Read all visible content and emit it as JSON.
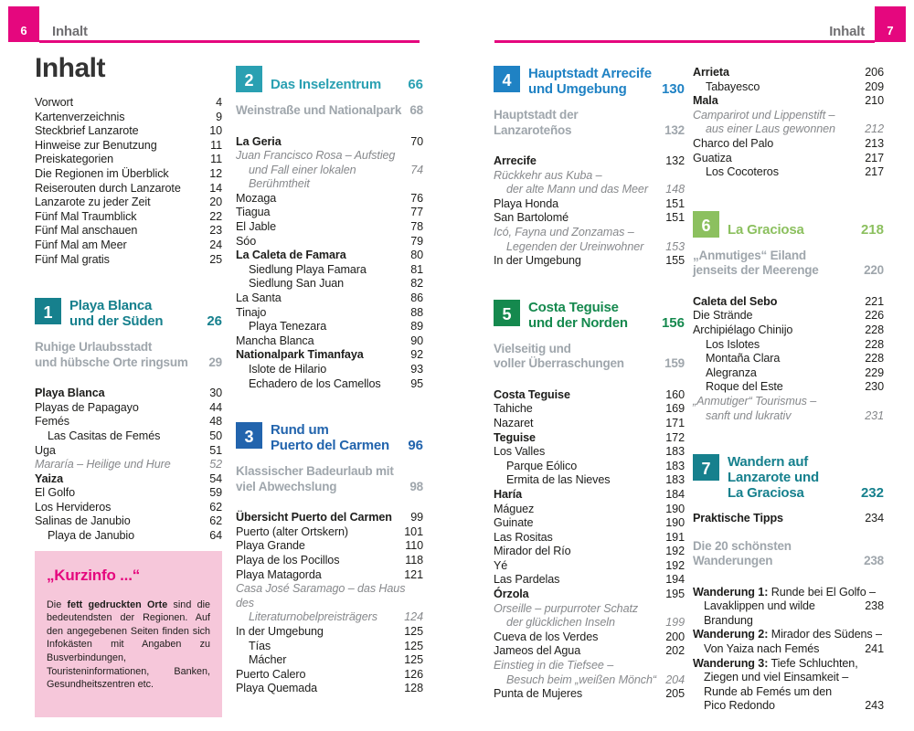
{
  "header": {
    "left": {
      "page": "6",
      "label": "Inhalt"
    },
    "right": {
      "page": "7",
      "label": "Inhalt"
    }
  },
  "colors": {
    "brand_pink": "#e5077e",
    "infobox_pink": "#f6c7da",
    "section_teal": "#16808d",
    "section_cyan": "#2aa0b2",
    "section_blue": "#2264ad",
    "section_bright_blue": "#1f82c4",
    "section_green": "#15894e",
    "section_light_green": "#8cc05f"
  },
  "columns": [
    {
      "items": [
        {
          "k": "title",
          "text": "Inhalt"
        },
        {
          "k": "r",
          "label": "Vorwort",
          "page": "4"
        },
        {
          "k": "r",
          "label": "Kartenverzeichnis",
          "page": "9"
        },
        {
          "k": "r",
          "label": "Steckbrief Lanzarote",
          "page": "10"
        },
        {
          "k": "r",
          "label": "Hinweise zur Benutzung",
          "page": "11"
        },
        {
          "k": "r",
          "label": "Preiskategorien",
          "page": "11"
        },
        {
          "k": "r",
          "label": "Die Regionen im Überblick",
          "page": "12"
        },
        {
          "k": "r",
          "label": "Reiserouten durch Lanzarote",
          "page": "14"
        },
        {
          "k": "r",
          "label": "Lanzarote zu jeder Zeit",
          "page": "20"
        },
        {
          "k": "r",
          "label": "Fünf Mal Traumblick",
          "page": "22"
        },
        {
          "k": "r",
          "label": "Fünf Mal anschauen",
          "page": "23"
        },
        {
          "k": "r",
          "label": "Fünf Mal am Meer",
          "page": "24"
        },
        {
          "k": "r",
          "label": "Fünf Mal gratis",
          "page": "25"
        },
        {
          "k": "sec",
          "n": "1",
          "color": "#16808d",
          "lines": [
            "Playa Blanca",
            "und der Süden"
          ],
          "page": "26"
        },
        {
          "k": "sub",
          "lines": [
            "Ruhige Urlaubsstadt",
            "und hübsche Orte ringsum"
          ],
          "page": "29"
        },
        {
          "k": "r",
          "label": "Playa Blanca",
          "page": "30",
          "b": 1
        },
        {
          "k": "r",
          "label": "Playas de Papagayo",
          "page": "44"
        },
        {
          "k": "r",
          "label": "Femés",
          "page": "48"
        },
        {
          "k": "r",
          "label": "Las Casitas de Femés",
          "page": "50",
          "ind": 1
        },
        {
          "k": "r",
          "label": "Uga",
          "page": "51"
        },
        {
          "k": "it",
          "lines": [
            "Mararía – Heilige und Hure"
          ],
          "page": "52"
        },
        {
          "k": "r",
          "label": "Yaiza",
          "page": "54",
          "b": 1
        },
        {
          "k": "r",
          "label": "El Golfo",
          "page": "59"
        },
        {
          "k": "r",
          "label": "Los Hervideros",
          "page": "62"
        },
        {
          "k": "r",
          "label": "Salinas de Janubio",
          "page": "62"
        },
        {
          "k": "r",
          "label": "Playa de Janubio",
          "page": "64",
          "ind": 1
        },
        {
          "k": "box",
          "title": "„Kurzinfo ...“",
          "parts": [
            {
              "t": "Die ",
              "b": 0
            },
            {
              "t": "fett gedruckten Orte",
              "b": 1
            },
            {
              "t": " sind die bedeutendsten der Regionen. Auf den angegebenen Seiten finden sich Infokästen mit Angaben zu Busverbindungen, Touristeninformationen, Banken, Gesundheitszentren etc.",
              "b": 0
            }
          ]
        }
      ]
    },
    {
      "items": [
        {
          "k": "sec",
          "n": "2",
          "color": "#2aa0b2",
          "lines": [
            "Das Inselzentrum"
          ],
          "page": "66"
        },
        {
          "k": "sub",
          "lines": [
            "Weinstraße und Nationalpark"
          ],
          "page": "68"
        },
        {
          "k": "r",
          "label": "La Geria",
          "page": "70",
          "b": 1
        },
        {
          "k": "it",
          "lines": [
            "Juan Francisco Rosa – Aufstieg",
            "und Fall einer lokalen Berühmtheit"
          ],
          "page": "74"
        },
        {
          "k": "r",
          "label": "Mozaga",
          "page": "76"
        },
        {
          "k": "r",
          "label": "Tiagua",
          "page": "77"
        },
        {
          "k": "r",
          "label": "El Jable",
          "page": "78"
        },
        {
          "k": "r",
          "label": "Sóo",
          "page": "79"
        },
        {
          "k": "r",
          "label": "La Caleta de Famara",
          "page": "80",
          "b": 1
        },
        {
          "k": "r",
          "label": "Siedlung Playa Famara",
          "page": "81",
          "ind": 1
        },
        {
          "k": "r",
          "label": "Siedlung San Juan",
          "page": "82",
          "ind": 1
        },
        {
          "k": "r",
          "label": "La Santa",
          "page": "86"
        },
        {
          "k": "r",
          "label": "Tinajo",
          "page": "88"
        },
        {
          "k": "r",
          "label": "Playa Tenezara",
          "page": "89",
          "ind": 1
        },
        {
          "k": "r",
          "label": "Mancha Blanca",
          "page": "90"
        },
        {
          "k": "r",
          "label": "Nationalpark Timanfaya",
          "page": "92",
          "b": 1
        },
        {
          "k": "r",
          "label": "Islote de Hilario",
          "page": "93",
          "ind": 1
        },
        {
          "k": "r",
          "label": "Echadero de los Camellos",
          "page": "95",
          "ind": 1
        },
        {
          "k": "sec",
          "n": "3",
          "color": "#2264ad",
          "lines": [
            "Rund um",
            "Puerto del Carmen"
          ],
          "page": "96"
        },
        {
          "k": "sub",
          "lines": [
            "Klassischer Badeurlaub mit",
            "viel Abwechslung"
          ],
          "page": "98"
        },
        {
          "k": "r",
          "label": "Übersicht Puerto del Carmen",
          "page": "99",
          "b": 1
        },
        {
          "k": "r",
          "label": "Puerto (alter Ortskern)",
          "page": "101"
        },
        {
          "k": "r",
          "label": "Playa Grande",
          "page": "110"
        },
        {
          "k": "r",
          "label": "Playa de los Pocillos",
          "page": "118"
        },
        {
          "k": "r",
          "label": "Playa Matagorda",
          "page": "121"
        },
        {
          "k": "it",
          "lines": [
            "Casa José Saramago – das Haus des",
            "Literaturnobelpreisträgers"
          ],
          "page": "124"
        },
        {
          "k": "r",
          "label": "In der Umgebung",
          "page": "125"
        },
        {
          "k": "r",
          "label": "Tías",
          "page": "125",
          "ind": 1
        },
        {
          "k": "r",
          "label": "Mácher",
          "page": "125",
          "ind": 1
        },
        {
          "k": "r",
          "label": "Puerto Calero",
          "page": "126"
        },
        {
          "k": "r",
          "label": "Playa Quemada",
          "page": "128"
        }
      ]
    },
    {
      "items": [
        {
          "k": "sec",
          "n": "4",
          "color": "#1f82c4",
          "lines": [
            "Hauptstadt Arrecife",
            "und Umgebung"
          ],
          "page": "130"
        },
        {
          "k": "sub",
          "lines": [
            "Hauptstadt der Lanzaroteños"
          ],
          "page": "132"
        },
        {
          "k": "r",
          "label": "Arrecife",
          "page": "132",
          "b": 1
        },
        {
          "k": "it",
          "lines": [
            "Rückkehr aus Kuba –",
            "der alte Mann und das Meer"
          ],
          "page": "148"
        },
        {
          "k": "r",
          "label": "Playa Honda",
          "page": "151"
        },
        {
          "k": "r",
          "label": "San Bartolomé",
          "page": "151"
        },
        {
          "k": "it",
          "lines": [
            "Icó, Fayna und Zonzamas –",
            "Legenden der Ureinwohner"
          ],
          "page": "153"
        },
        {
          "k": "r",
          "label": "In der Umgebung",
          "page": "155"
        },
        {
          "k": "sec",
          "n": "5",
          "color": "#15894e",
          "lines": [
            "Costa Teguise",
            "und der Norden"
          ],
          "page": "156"
        },
        {
          "k": "sub",
          "lines": [
            "Vielseitig und",
            "voller Überraschungen"
          ],
          "page": "159"
        },
        {
          "k": "r",
          "label": "Costa Teguise",
          "page": "160",
          "b": 1
        },
        {
          "k": "r",
          "label": "Tahiche",
          "page": "169"
        },
        {
          "k": "r",
          "label": "Nazaret",
          "page": "171"
        },
        {
          "k": "r",
          "label": "Teguise",
          "page": "172",
          "b": 1
        },
        {
          "k": "r",
          "label": "Los Valles",
          "page": "183"
        },
        {
          "k": "r",
          "label": "Parque Eólico",
          "page": "183",
          "ind": 1
        },
        {
          "k": "r",
          "label": "Ermita de las Nieves",
          "page": "183",
          "ind": 1
        },
        {
          "k": "r",
          "label": "Haría",
          "page": "184",
          "b": 1
        },
        {
          "k": "r",
          "label": "Máguez",
          "page": "190"
        },
        {
          "k": "r",
          "label": "Guinate",
          "page": "190"
        },
        {
          "k": "r",
          "label": "Las Rositas",
          "page": "191"
        },
        {
          "k": "r",
          "label": "Mirador del Río",
          "page": "192"
        },
        {
          "k": "r",
          "label": "Yé",
          "page": "192"
        },
        {
          "k": "r",
          "label": "Las Pardelas",
          "page": "194"
        },
        {
          "k": "r",
          "label": "Órzola",
          "page": "195",
          "b": 1
        },
        {
          "k": "it",
          "lines": [
            "Orseille – purpurroter Schatz",
            "der glücklichen Inseln"
          ],
          "page": "199"
        },
        {
          "k": "r",
          "label": "Cueva de los Verdes",
          "page": "200"
        },
        {
          "k": "r",
          "label": "Jameos del Agua",
          "page": "202"
        },
        {
          "k": "it",
          "lines": [
            "Einstieg in die Tiefsee –",
            "Besuch beim „weißen Mönch“"
          ],
          "page": "204"
        },
        {
          "k": "r",
          "label": "Punta de Mujeres",
          "page": "205"
        }
      ]
    },
    {
      "items": [
        {
          "k": "r",
          "label": "Arrieta",
          "page": "206",
          "b": 1
        },
        {
          "k": "r",
          "label": "Tabayesco",
          "page": "209",
          "ind": 1
        },
        {
          "k": "r",
          "label": "Mala",
          "page": "210",
          "b": 1
        },
        {
          "k": "it",
          "lines": [
            "Camparirot und Lippenstift –",
            "aus einer Laus gewonnen"
          ],
          "page": "212"
        },
        {
          "k": "r",
          "label": "Charco del Palo",
          "page": "213"
        },
        {
          "k": "r",
          "label": "Guatiza",
          "page": "217"
        },
        {
          "k": "r",
          "label": "Los Cocoteros",
          "page": "217",
          "ind": 1
        },
        {
          "k": "sec",
          "n": "6",
          "color": "#8cc05f",
          "lines": [
            "La Graciosa"
          ],
          "page": "218"
        },
        {
          "k": "sub",
          "lines": [
            "„Anmutiges“ Eiland",
            "jenseits der Meerenge"
          ],
          "page": "220"
        },
        {
          "k": "r",
          "label": "Caleta del Sebo",
          "page": "221",
          "b": 1
        },
        {
          "k": "r",
          "label": "Die Strände",
          "page": "226"
        },
        {
          "k": "r",
          "label": "Archipiélago Chinijo",
          "page": "228"
        },
        {
          "k": "r",
          "label": "Los Islotes",
          "page": "228",
          "ind": 1
        },
        {
          "k": "r",
          "label": "Montaña Clara",
          "page": "228",
          "ind": 1
        },
        {
          "k": "r",
          "label": "Alegranza",
          "page": "229",
          "ind": 1
        },
        {
          "k": "r",
          "label": "Roque del Este",
          "page": "230",
          "ind": 1
        },
        {
          "k": "it",
          "lines": [
            "„Anmutiger“ Tourismus –",
            "sanft und lukrativ"
          ],
          "page": "231"
        },
        {
          "k": "sec",
          "n": "7",
          "color": "#16808d",
          "lines": [
            "Wandern auf",
            "Lanzarote und",
            "La Graciosa"
          ],
          "page": "232"
        },
        {
          "k": "r",
          "label": "Praktische Tipps",
          "page": "234",
          "b": 1
        },
        {
          "k": "sub",
          "lines": [
            "Die 20 schönsten Wanderungen"
          ],
          "page": "238"
        },
        {
          "k": "w",
          "pre": "Wanderung 1:",
          "first": "Runde bei El Golfo –",
          "rest": [
            "Lavaklippen und wilde Brandung"
          ],
          "page": "238"
        },
        {
          "k": "w",
          "pre": "Wanderung 2:",
          "first": "Mirador des Südens –",
          "rest": [
            "Von Yaiza nach Femés"
          ],
          "page": "241"
        },
        {
          "k": "w",
          "pre": "Wanderung 3:",
          "first": "Tiefe Schluchten,",
          "rest": [
            "Ziegen und viel Einsamkeit –",
            "Runde ab Femés um den",
            "Pico Redondo"
          ],
          "page": "243"
        }
      ]
    }
  ]
}
